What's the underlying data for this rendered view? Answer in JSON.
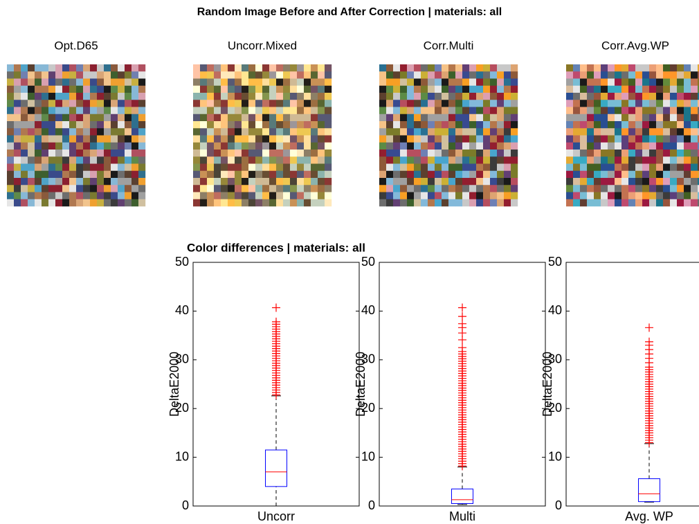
{
  "figure": {
    "title": "Random Image Before and After Correction | materials: all",
    "images": [
      {
        "title": "Opt.D65"
      },
      {
        "title": "Uncorr.Mixed"
      },
      {
        "title": "Corr.Multi"
      },
      {
        "title": "Corr.Avg.WP"
      }
    ]
  },
  "chart_data": [
    {
      "type": "box",
      "title": "Color differences | materials: all",
      "ylabel": "DeltaE2000",
      "categories": [
        "Uncorr"
      ],
      "ylim": [
        0,
        50
      ],
      "yticks": [
        0,
        10,
        20,
        30,
        40,
        50
      ],
      "box": {
        "low": 0,
        "q1": 4,
        "median": 7,
        "q3": 11.5,
        "high": 22.6
      },
      "outliers": [
        22.8,
        23.3,
        23.8,
        24.3,
        24.8,
        25.3,
        25.8,
        26.3,
        26.8,
        27.3,
        27.8,
        28.3,
        28.8,
        29.3,
        29.8,
        30.3,
        30.8,
        31.3,
        31.8,
        32.3,
        32.8,
        33.3,
        33.8,
        34.3,
        34.8,
        35.3,
        35.8,
        36.3,
        36.8,
        37.3,
        37.8,
        40.7
      ]
    },
    {
      "type": "box",
      "ylabel": "DeltaE2000",
      "categories": [
        "Multi"
      ],
      "ylim": [
        0,
        50
      ],
      "yticks": [
        0,
        10,
        20,
        30,
        40,
        50
      ],
      "box": {
        "low": 0.3,
        "q1": 0.5,
        "median": 1.3,
        "q3": 3.5,
        "high": 8
      },
      "outliers": [
        8.2,
        8.7,
        9.2,
        9.7,
        10.2,
        10.7,
        11.2,
        11.7,
        12.2,
        12.7,
        13.2,
        13.7,
        14.2,
        14.7,
        15.2,
        15.7,
        16.2,
        16.7,
        17.2,
        17.7,
        18.2,
        18.7,
        19.2,
        19.7,
        20.2,
        20.7,
        21.2,
        21.7,
        22.2,
        22.7,
        23.2,
        23.7,
        24.2,
        24.7,
        25.2,
        25.7,
        26.2,
        26.7,
        27.2,
        27.7,
        28.2,
        28.7,
        29.2,
        29.7,
        30.2,
        30.7,
        31.2,
        31.7,
        32.5,
        34.1,
        35.5,
        36.6,
        37.4,
        38.9,
        40.7
      ]
    },
    {
      "type": "box",
      "ylabel": "DeltaE2000",
      "categories": [
        "Avg. WP"
      ],
      "ylim": [
        0,
        50
      ],
      "yticks": [
        0,
        10,
        20,
        30,
        40,
        50
      ],
      "box": {
        "low": 0.8,
        "q1": 0.9,
        "median": 2.5,
        "q3": 5.6,
        "high": 12.8
      },
      "outliers": [
        13.0,
        13.5,
        14.0,
        14.5,
        15.0,
        15.5,
        16.0,
        16.5,
        17.0,
        17.5,
        18.0,
        18.5,
        19.0,
        19.5,
        20.0,
        20.5,
        21.0,
        21.5,
        22.0,
        22.5,
        23.0,
        23.5,
        24.0,
        24.5,
        25.0,
        25.5,
        26.0,
        26.5,
        27.0,
        27.5,
        28.0,
        28.5,
        29.4,
        30.3,
        31.2,
        32.1,
        33.0,
        33.7,
        36.6
      ]
    }
  ]
}
